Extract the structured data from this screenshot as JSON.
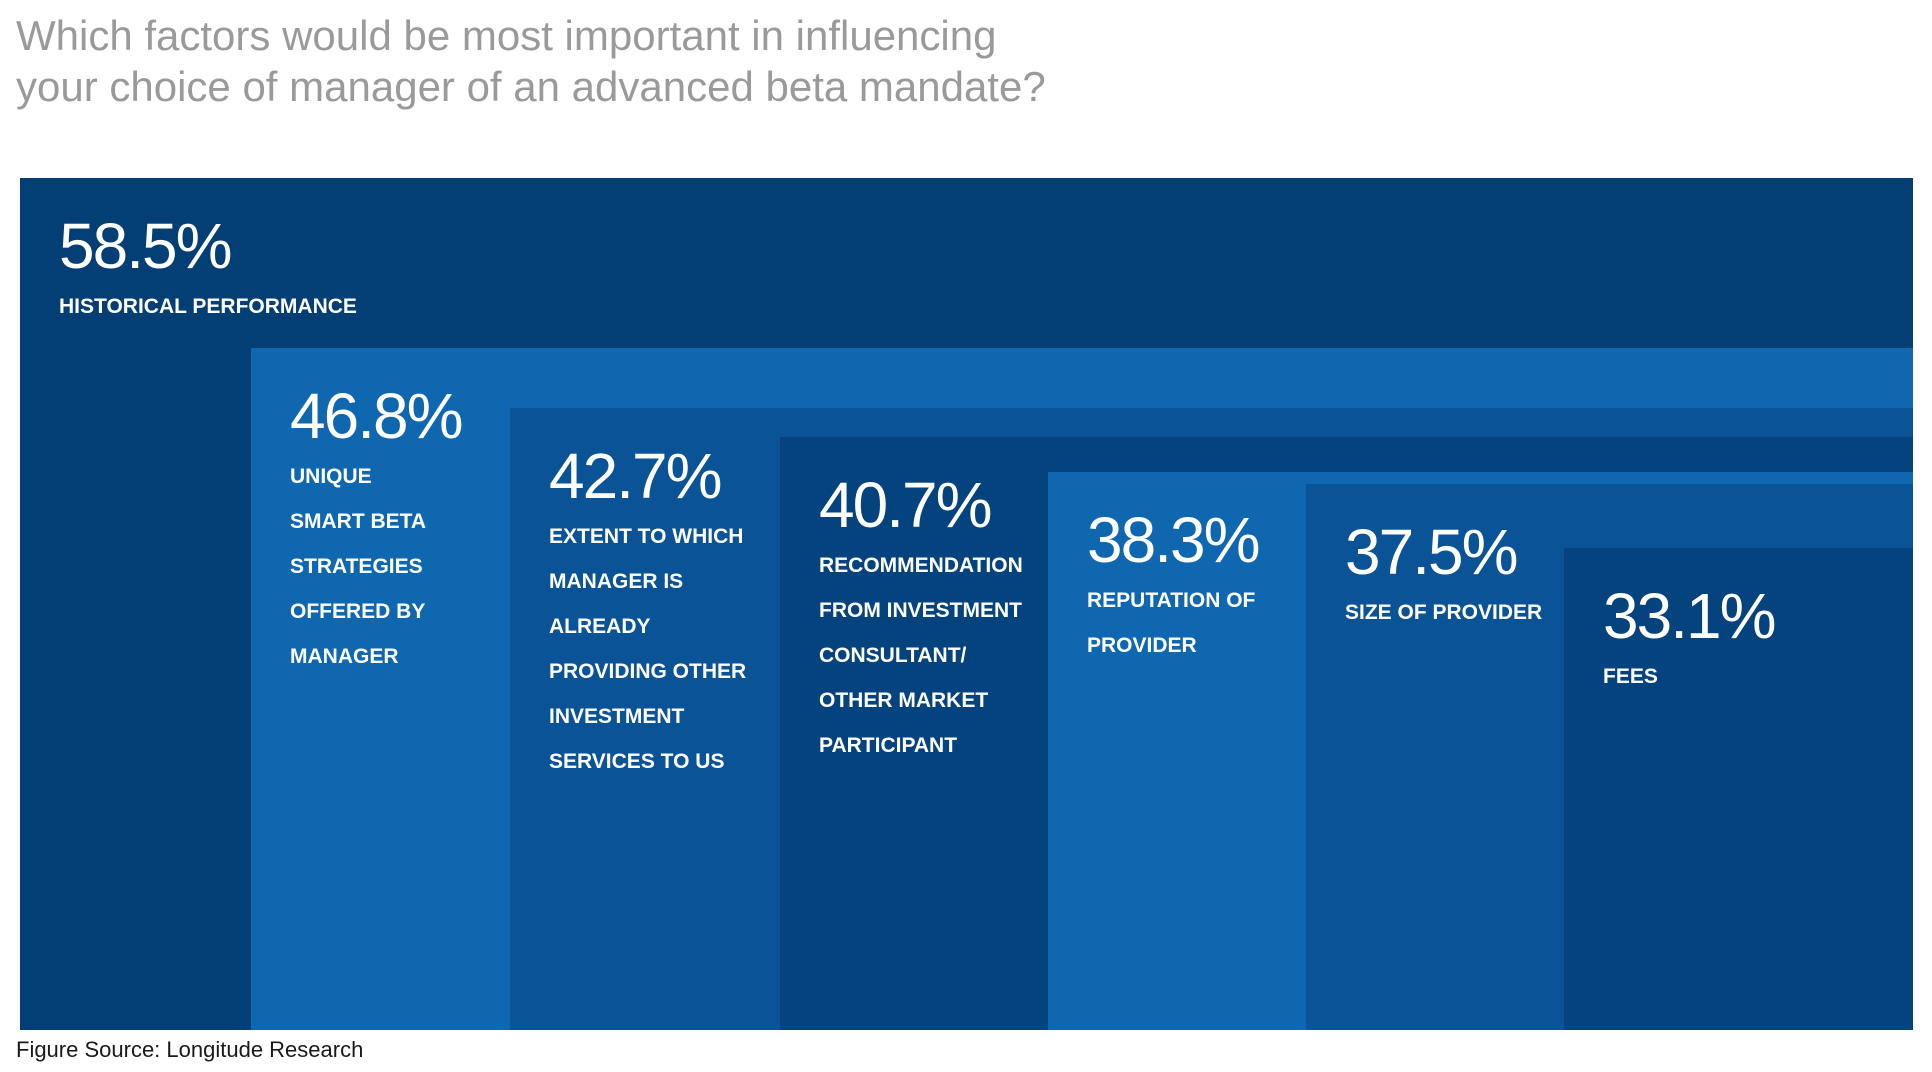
{
  "title": {
    "line1": "Which factors would be most important in influencing",
    "line2": "your choice of manager of an advanced beta mandate?"
  },
  "source": "Figure Source: Longitude Research",
  "colors": {
    "shades": [
      "#033e75",
      "#0f67b0",
      "#0a5396",
      "#04437e",
      "#0f67b0",
      "#0a5396",
      "#04437e"
    ],
    "text": "#ffffff"
  },
  "chart_data": {
    "type": "bar",
    "title": "Which factors would be most important in influencing your choice of manager of an advanced beta mandate?",
    "unit": "%",
    "ylim": [
      0,
      58.5
    ],
    "categories": [
      "HISTORICAL PERFORMANCE",
      "UNIQUE SMART BETA STRATEGIES OFFERED BY MANAGER",
      "EXTENT TO WHICH MANAGER IS ALREADY PROVIDING OTHER INVESTMENT SERVICES TO US",
      "RECOMMENDATION FROM INVESTMENT CONSULTANT/ OTHER MARKET PARTICIPANT",
      "REPUTATION OF PROVIDER",
      "SIZE OF PROVIDER",
      "FEES"
    ],
    "values": [
      58.5,
      46.8,
      42.7,
      40.7,
      38.3,
      37.5,
      33.1
    ],
    "value_labels": [
      "58.5%",
      "46.8%",
      "42.7%",
      "40.7%",
      "38.3%",
      "37.5%",
      "33.1%"
    ],
    "label_lines": [
      [
        "HISTORICAL PERFORMANCE"
      ],
      [
        "UNIQUE",
        "SMART BETA",
        "STRATEGIES",
        "OFFERED BY",
        "MANAGER"
      ],
      [
        "EXTENT TO WHICH",
        "MANAGER IS",
        "ALREADY",
        "PROVIDING OTHER",
        "INVESTMENT",
        "SERVICES TO US"
      ],
      [
        "RECOMMENDATION",
        "FROM INVESTMENT",
        "CONSULTANT/",
        "OTHER MARKET",
        "PARTICIPANT"
      ],
      [
        "REPUTATION OF",
        "PROVIDER"
      ],
      [
        "SIZE OF PROVIDER"
      ],
      [
        "FEES"
      ]
    ]
  }
}
